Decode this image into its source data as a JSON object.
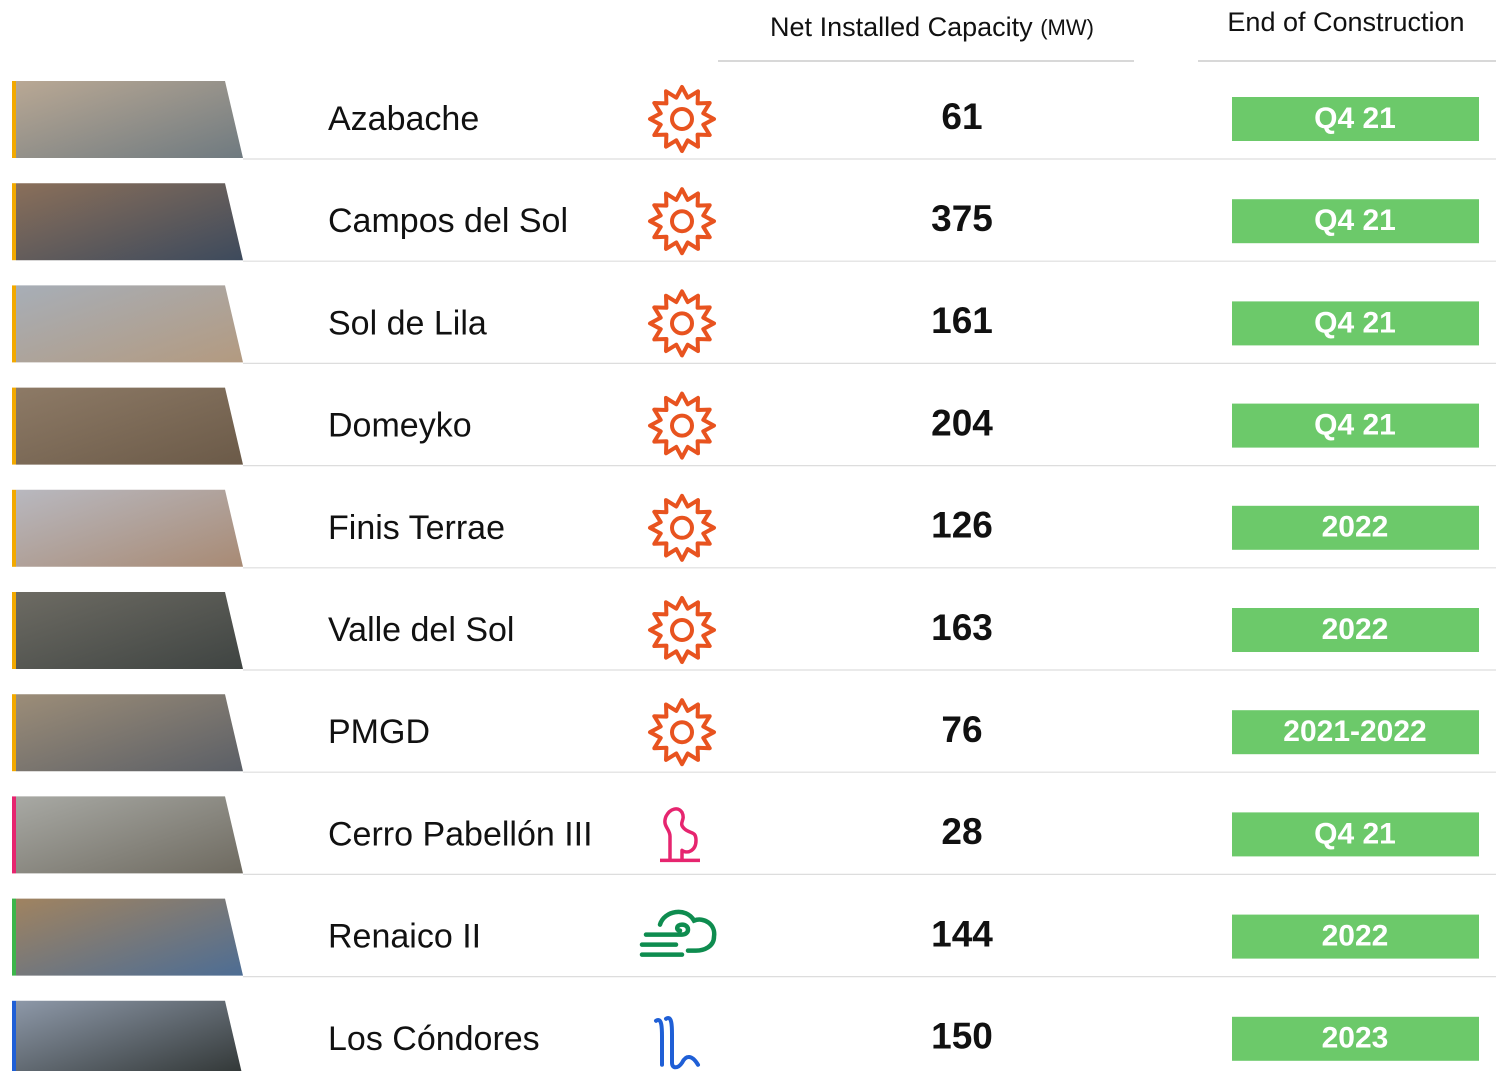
{
  "header": {
    "capacity": "Net Installed Capacity",
    "capacity_unit": "(MW)",
    "end": "End of Construction"
  },
  "rows": [
    {
      "name": "Azabache",
      "capacity": "61",
      "end": "Q4 21"
    },
    {
      "name": "Campos del Sol",
      "capacity": "375",
      "end": "Q4 21"
    },
    {
      "name": "Sol de Lila",
      "capacity": "161",
      "end": "Q4 21"
    },
    {
      "name": "Domeyko",
      "capacity": "204",
      "end": "Q4 21"
    },
    {
      "name": "Finis Terrae",
      "capacity": "126",
      "end": "2022"
    },
    {
      "name": "Valle del Sol",
      "capacity": "163",
      "end": "2022"
    },
    {
      "name": "PMGD",
      "capacity": "76",
      "end": "2021-2022"
    },
    {
      "name": "Cerro Pabellón III",
      "capacity": "28",
      "end": "Q4 21"
    },
    {
      "name": "Renaico II",
      "capacity": "144",
      "end": "2022"
    },
    {
      "name": "Los Cóndores",
      "capacity": "150",
      "end": "2023"
    }
  ]
}
